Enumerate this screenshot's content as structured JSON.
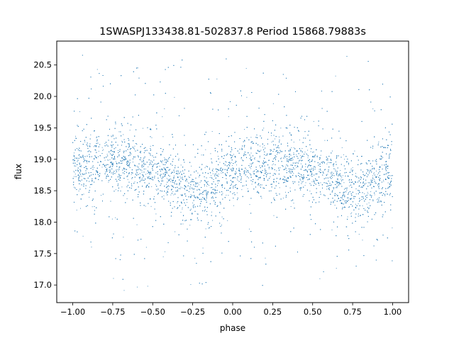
{
  "chart_data": {
    "type": "scatter",
    "title": "1SWASPJ133438.81-502837.8 Period 15868.79883s",
    "xlabel": "phase",
    "ylabel": "flux",
    "xlim": [
      -1.1,
      1.1
    ],
    "ylim": [
      16.72,
      20.88
    ],
    "x_ticks": [
      -1.0,
      -0.75,
      -0.5,
      -0.25,
      0.0,
      0.25,
      0.5,
      0.75,
      1.0
    ],
    "x_tick_labels": [
      "−1.00",
      "−0.75",
      "−0.50",
      "−0.25",
      "0.00",
      "0.25",
      "0.50",
      "0.75",
      "1.00"
    ],
    "y_ticks": [
      17.0,
      17.5,
      18.0,
      18.5,
      19.0,
      19.5,
      20.0,
      20.5
    ],
    "y_tick_labels": [
      "17.0",
      "17.5",
      "18.0",
      "18.5",
      "19.0",
      "19.5",
      "20.0",
      "20.5"
    ],
    "grid": false,
    "marker_color": "#1f77b4",
    "series": [
      {
        "x_range": [
          -1.0,
          1.0
        ],
        "mean_curve": {
          "x": [
            -1.0,
            -0.9,
            -0.8,
            -0.7,
            -0.6,
            -0.5,
            -0.4,
            -0.3,
            -0.25,
            -0.2,
            -0.1,
            0.0,
            0.1,
            0.2,
            0.3,
            0.4,
            0.5,
            0.6,
            0.7,
            0.75,
            0.8,
            0.9,
            1.0
          ],
          "y": [
            18.82,
            18.9,
            18.95,
            18.95,
            18.9,
            18.82,
            18.72,
            18.55,
            18.45,
            18.48,
            18.65,
            18.82,
            18.9,
            18.95,
            18.95,
            18.9,
            18.82,
            18.72,
            18.55,
            18.45,
            18.48,
            18.65,
            18.82
          ]
        },
        "scatter_sigma": 0.25,
        "outlier_range": [
          16.9,
          20.7
        ]
      }
    ]
  }
}
